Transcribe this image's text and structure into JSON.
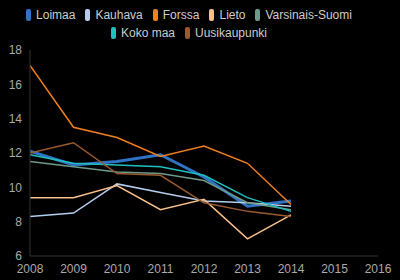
{
  "chart_data": {
    "type": "line",
    "x": [
      2008,
      2009,
      2010,
      2011,
      2012,
      2013,
      2014,
      2015,
      2016
    ],
    "xlim": [
      2008,
      2016
    ],
    "xticks": [
      2008,
      2009,
      2010,
      2011,
      2012,
      2013,
      2014,
      2015,
      2016
    ],
    "ylim": [
      6,
      18
    ],
    "yticks": [
      6,
      8,
      10,
      12,
      14,
      16,
      18
    ],
    "grid": false,
    "legend": "top",
    "series": [
      {
        "name": "Loimaa",
        "color": "#2f73c4",
        "values": [
          12.1,
          11.3,
          11.5,
          11.9,
          10.6,
          8.9,
          9.2,
          null,
          null
        ]
      },
      {
        "name": "Kauhava",
        "color": "#b4cdee",
        "values": [
          8.3,
          8.5,
          10.2,
          9.7,
          9.2,
          9.1,
          8.9,
          null,
          null
        ]
      },
      {
        "name": "Forssa",
        "color": "#f07f1d",
        "values": [
          17.1,
          13.5,
          12.9,
          11.8,
          12.4,
          11.4,
          9.0,
          null,
          null
        ]
      },
      {
        "name": "Lieto",
        "color": "#f9c08a",
        "values": [
          9.4,
          9.4,
          10.1,
          8.7,
          9.3,
          7.0,
          8.4,
          null,
          null
        ]
      },
      {
        "name": "Varsinais-Suomi",
        "color": "#6f9a8a",
        "values": [
          11.5,
          11.2,
          10.9,
          10.8,
          10.4,
          9.1,
          8.7,
          null,
          null
        ]
      },
      {
        "name": "Koko maa",
        "color": "#1fbfbf",
        "values": [
          11.9,
          11.4,
          11.3,
          11.2,
          10.7,
          9.4,
          8.6,
          null,
          null
        ]
      },
      {
        "name": "Uusikaupunki",
        "color": "#9a5a30",
        "values": [
          12.0,
          12.6,
          10.8,
          10.7,
          9.1,
          8.6,
          8.3,
          null,
          null
        ]
      }
    ]
  }
}
